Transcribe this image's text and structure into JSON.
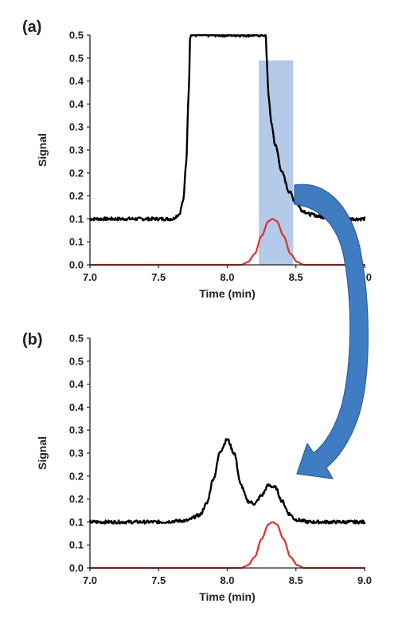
{
  "colors": {
    "trace": "#000000",
    "peak": "#e0302a",
    "highlight": "#9dbbe2",
    "arrow": "#3f7cc2",
    "axis": "#222222"
  },
  "chart_data": [
    {
      "panel": "(a)",
      "type": "line",
      "xlabel": "Time (min)",
      "ylabel": "Signal",
      "xlim": [
        7.0,
        9.0
      ],
      "ylim": [
        0.0,
        0.5
      ],
      "x_ticks": [
        "7.0",
        "7.5",
        "8.0",
        "8.5",
        "9.0"
      ],
      "y_ticks": [
        "0.0",
        "0.1",
        "0.1",
        "0.2",
        "0.2",
        "0.3",
        "0.3",
        "0.4",
        "0.4",
        "0.5",
        "0.5"
      ],
      "series": [
        {
          "color": "#000000",
          "x": [
            7.0,
            7.6,
            7.65,
            7.68,
            7.7,
            7.72,
            7.73,
            8.28,
            8.29,
            8.3,
            8.32,
            8.35,
            8.4,
            8.45,
            8.5,
            8.55,
            8.6,
            8.7,
            8.8,
            9.0
          ],
          "y": [
            0.1,
            0.1,
            0.11,
            0.14,
            0.22,
            0.38,
            0.5,
            0.5,
            0.43,
            0.37,
            0.31,
            0.26,
            0.2,
            0.16,
            0.135,
            0.118,
            0.11,
            0.104,
            0.1,
            0.1
          ]
        },
        {
          "color": "#e0302a",
          "x": [
            7.0,
            8.1,
            8.15,
            8.2,
            8.25,
            8.3,
            8.33,
            8.36,
            8.41,
            8.46,
            8.51,
            8.56,
            9.0
          ],
          "y": [
            0.0,
            0.0,
            0.006,
            0.024,
            0.063,
            0.095,
            0.1,
            0.095,
            0.063,
            0.024,
            0.006,
            0.0,
            0.0
          ]
        }
      ],
      "highlight_region": {
        "x": [
          8.23,
          8.48
        ],
        "y": [
          0.0,
          0.445
        ]
      }
    },
    {
      "panel": "(b)",
      "type": "line",
      "xlabel": "Time (min)",
      "ylabel": "Signal",
      "xlim": [
        7.0,
        9.0
      ],
      "ylim": [
        0.0,
        0.5
      ],
      "x_ticks": [
        "7.0",
        "7.5",
        "8.0",
        "8.5",
        "9.0"
      ],
      "y_ticks": [
        "0.0",
        "0.1",
        "0.1",
        "0.2",
        "0.2",
        "0.3",
        "0.3",
        "0.4",
        "0.4",
        "0.5",
        "0.5"
      ],
      "series": [
        {
          "color": "#000000",
          "x": [
            7.0,
            7.5,
            7.7,
            7.8,
            7.85,
            7.9,
            7.95,
            8.0,
            8.05,
            8.1,
            8.15,
            8.2,
            8.25,
            8.3,
            8.35,
            8.4,
            8.45,
            8.5,
            8.6,
            8.7,
            9.0
          ],
          "y": [
            0.1,
            0.1,
            0.103,
            0.115,
            0.14,
            0.195,
            0.255,
            0.28,
            0.25,
            0.18,
            0.145,
            0.14,
            0.158,
            0.18,
            0.175,
            0.145,
            0.118,
            0.105,
            0.1,
            0.1,
            0.1
          ],
          "noise": 0.0035
        },
        {
          "color": "#e0302a",
          "x": [
            7.0,
            8.1,
            8.15,
            8.2,
            8.25,
            8.3,
            8.33,
            8.36,
            8.41,
            8.46,
            8.51,
            8.56,
            9.0
          ],
          "y": [
            0.0,
            0.0,
            0.006,
            0.024,
            0.063,
            0.095,
            0.1,
            0.095,
            0.063,
            0.024,
            0.006,
            0.0,
            0.0
          ]
        }
      ]
    }
  ]
}
